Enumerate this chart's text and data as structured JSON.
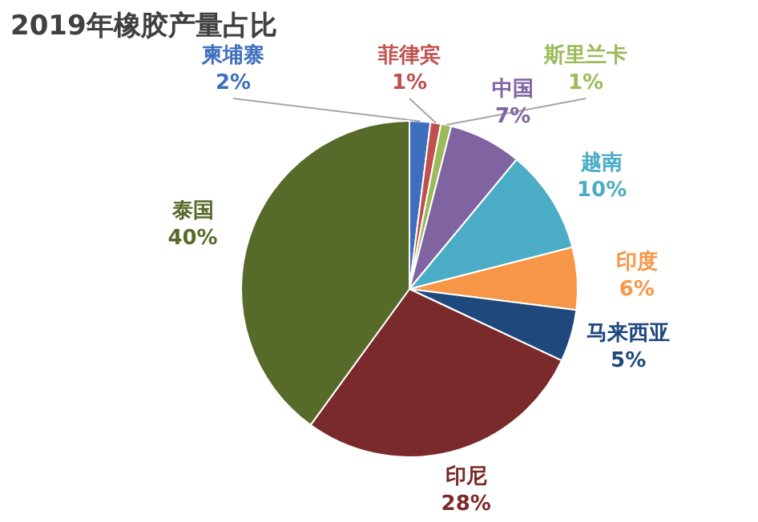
{
  "chart_data": {
    "type": "pie",
    "title": "2019年橡胶产量占比",
    "categories": [
      "柬埔寨",
      "菲律宾",
      "斯里兰卡",
      "中国",
      "越南",
      "印度",
      "马来西亚",
      "印尼",
      "泰国"
    ],
    "values": [
      2,
      1,
      1,
      7,
      10,
      6,
      5,
      28,
      40
    ],
    "value_labels": [
      "2%",
      "1%",
      "1%",
      "7%",
      "10%",
      "6%",
      "5%",
      "28%",
      "40%"
    ],
    "colors": [
      "#3e6fbf",
      "#c0504d",
      "#9bbb59",
      "#8064a2",
      "#4bacc6",
      "#f79646",
      "#1f497d",
      "#7a2a2a",
      "#566b2a"
    ]
  }
}
